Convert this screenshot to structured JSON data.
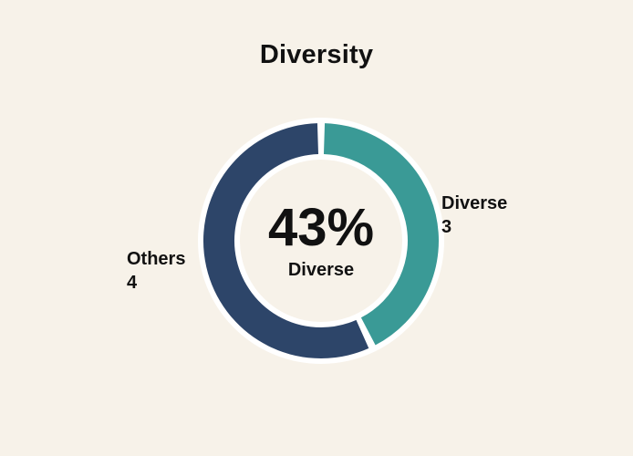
{
  "page": {
    "background_color": "#f7f2e9",
    "text_color": "#111111"
  },
  "chart_data": {
    "type": "pie",
    "variant": "donut",
    "title": "Diversity",
    "categories": [
      "Diverse",
      "Others"
    ],
    "values": [
      3,
      4
    ],
    "colors": [
      "#3a9a96",
      "#2d4569"
    ],
    "outline_color": "#ffffff",
    "center_text": {
      "percent": "43%",
      "label": "Diverse"
    },
    "out_labels": [
      {
        "name": "Diverse",
        "value": "3",
        "side": "right"
      },
      {
        "name": "Others",
        "value": "4",
        "side": "left"
      }
    ],
    "layout": {
      "start_angle_deg": 0,
      "clockwise": true,
      "gap_deg": 3.6,
      "legend": "out-labels",
      "grid": false
    }
  }
}
